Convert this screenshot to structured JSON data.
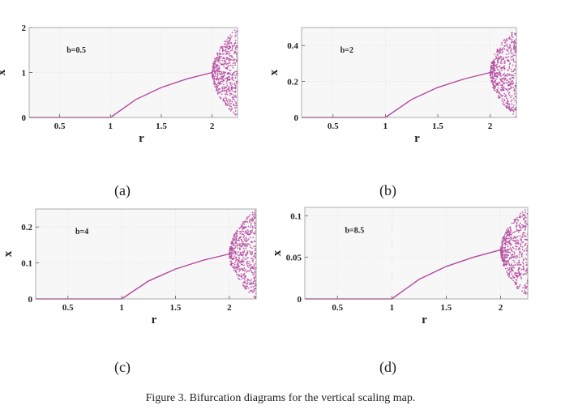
{
  "figure_caption": "Figure 3.   Bifurcation diagrams for the vertical scaling map.",
  "chart_data": [
    {
      "type": "scatter",
      "panel_label": "(a)",
      "annotation": "b=0.5",
      "xlabel": "r",
      "ylabel": "x",
      "xlim": [
        0.2,
        2.25
      ],
      "ylim": [
        0,
        2
      ],
      "xticks": [
        0.5,
        1,
        1.5,
        2
      ],
      "xtick_labels": [
        "0.5",
        "1",
        "1.5",
        "2"
      ],
      "yticks": [
        0,
        1,
        2
      ],
      "ytick_labels": [
        "0",
        "1",
        "2"
      ],
      "grid": true,
      "color": "#b4489e",
      "series": [
        {
          "values": [
            [
              0.2,
              0
            ],
            [
              1.0,
              0
            ],
            [
              1.25,
              0.4
            ],
            [
              1.5,
              0.667
            ],
            [
              1.75,
              0.857
            ],
            [
              2.0,
              1.0
            ]
          ]
        }
      ],
      "chaotic_band": {
        "r": [
          2.0,
          2.25
        ],
        "x": [
          0,
          2
        ]
      }
    },
    {
      "type": "scatter",
      "panel_label": "(b)",
      "annotation": "b=2",
      "xlabel": "r",
      "ylabel": "x",
      "xlim": [
        0.2,
        2.25
      ],
      "ylim": [
        0,
        0.5
      ],
      "xticks": [
        0.5,
        1,
        1.5,
        2
      ],
      "xtick_labels": [
        "0.5",
        "1",
        "1.5",
        "2"
      ],
      "yticks": [
        0,
        0.2,
        0.4
      ],
      "ytick_labels": [
        "0",
        "0.2",
        "0.4"
      ],
      "grid": true,
      "color": "#b4489e",
      "series": [
        {
          "values": [
            [
              0.2,
              0
            ],
            [
              1.0,
              0
            ],
            [
              1.25,
              0.1
            ],
            [
              1.5,
              0.167
            ],
            [
              1.75,
              0.214
            ],
            [
              2.0,
              0.25
            ]
          ]
        }
      ],
      "chaotic_band": {
        "r": [
          2.0,
          2.25
        ],
        "x": [
          0,
          0.5
        ]
      }
    },
    {
      "type": "scatter",
      "panel_label": "(c)",
      "annotation": "b=4",
      "xlabel": "r",
      "ylabel": "x",
      "xlim": [
        0.2,
        2.25
      ],
      "ylim": [
        0,
        0.25
      ],
      "xticks": [
        0.5,
        1,
        1.5,
        2
      ],
      "xtick_labels": [
        "0.5",
        "1",
        "1.5",
        "2"
      ],
      "yticks": [
        0,
        0.1,
        0.2
      ],
      "ytick_labels": [
        "0",
        "0.1",
        "0.2"
      ],
      "grid": true,
      "color": "#b4489e",
      "series": [
        {
          "values": [
            [
              0.2,
              0
            ],
            [
              1.0,
              0
            ],
            [
              1.25,
              0.05
            ],
            [
              1.5,
              0.083
            ],
            [
              1.75,
              0.107
            ],
            [
              2.0,
              0.125
            ]
          ]
        }
      ],
      "chaotic_band": {
        "r": [
          2.0,
          2.25
        ],
        "x": [
          0,
          0.25
        ]
      }
    },
    {
      "type": "scatter",
      "panel_label": "(d)",
      "annotation": "b=8.5",
      "xlabel": "r",
      "ylabel": "x",
      "xlim": [
        0.2,
        2.25
      ],
      "ylim": [
        0,
        0.11
      ],
      "xticks": [
        0.5,
        1,
        1.5,
        2
      ],
      "xtick_labels": [
        "0.5",
        "1",
        "1.5",
        "2"
      ],
      "yticks": [
        0,
        0.05,
        0.1
      ],
      "ytick_labels": [
        "0",
        "0.05",
        "0.1"
      ],
      "grid": true,
      "color": "#b4489e",
      "series": [
        {
          "values": [
            [
              0.2,
              0
            ],
            [
              1.0,
              0
            ],
            [
              1.25,
              0.0235
            ],
            [
              1.5,
              0.039
            ],
            [
              1.75,
              0.05
            ],
            [
              2.0,
              0.059
            ]
          ]
        }
      ],
      "chaotic_band": {
        "r": [
          2.0,
          2.25
        ],
        "x": [
          0,
          0.1176
        ]
      }
    }
  ]
}
